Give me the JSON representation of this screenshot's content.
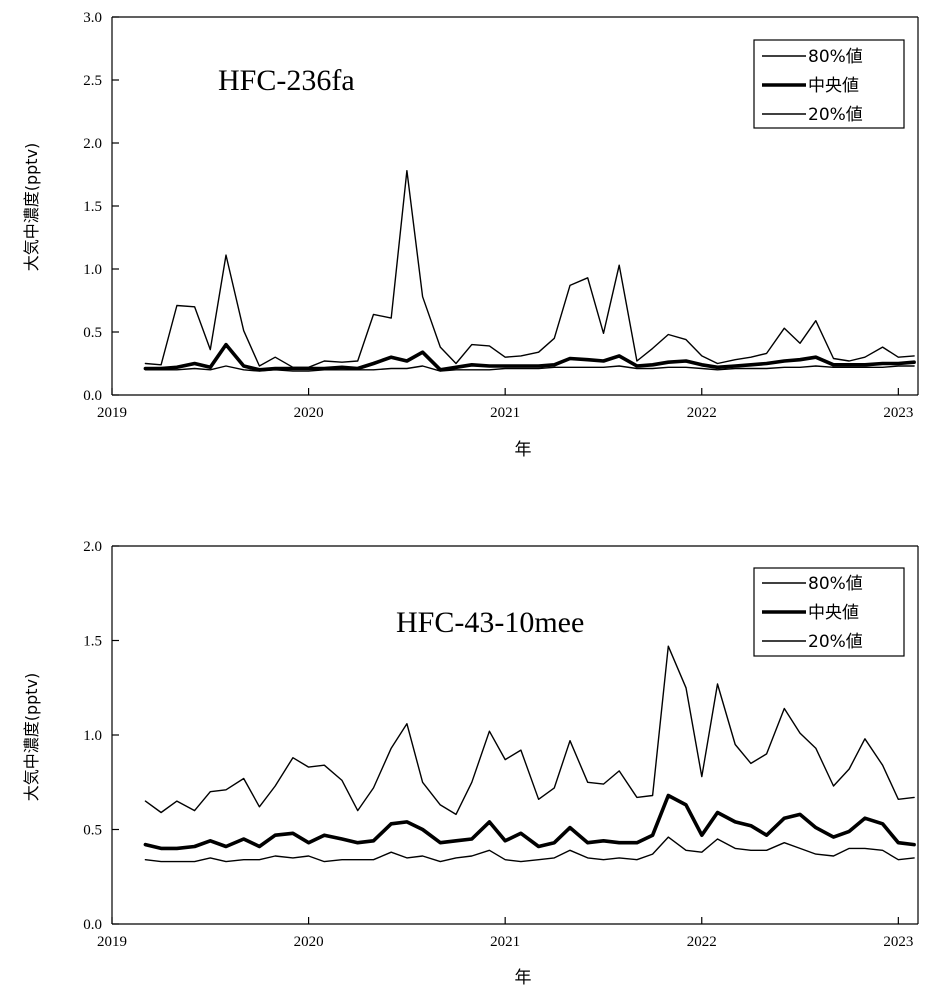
{
  "chart_data": [
    {
      "type": "line",
      "title": "HFC-236fa",
      "xlabel": "年",
      "ylabel": "大気中濃度(pptv)",
      "xlim": [
        2019,
        2023.1
      ],
      "ylim": [
        0,
        3.0
      ],
      "xticks": [
        "2019",
        "2020",
        "2021",
        "2022",
        "2023"
      ],
      "yticks": [
        "0.0",
        "0.5",
        "1.0",
        "1.5",
        "2.0",
        "2.5",
        "3.0"
      ],
      "grid": false,
      "legend_position": "top-right",
      "x": [
        2019.17,
        2019.25,
        2019.33,
        2019.42,
        2019.5,
        2019.58,
        2019.67,
        2019.75,
        2019.83,
        2019.92,
        2020.0,
        2020.08,
        2020.17,
        2020.25,
        2020.33,
        2020.42,
        2020.5,
        2020.58,
        2020.67,
        2020.75,
        2020.83,
        2020.92,
        2021.0,
        2021.08,
        2021.17,
        2021.25,
        2021.33,
        2021.42,
        2021.5,
        2021.58,
        2021.67,
        2021.75,
        2021.83,
        2021.92,
        2022.0,
        2022.08,
        2022.17,
        2022.25,
        2022.33,
        2022.42,
        2022.5,
        2022.58,
        2022.67,
        2022.75,
        2022.83,
        2022.92,
        2023.0,
        2023.08
      ],
      "series": [
        {
          "name": "80%値",
          "stroke_width": 1.4,
          "values": [
            0.25,
            0.24,
            0.71,
            0.7,
            0.36,
            1.11,
            0.51,
            0.23,
            0.3,
            0.22,
            0.22,
            0.27,
            0.26,
            0.27,
            0.64,
            0.61,
            1.78,
            0.78,
            0.38,
            0.25,
            0.4,
            0.39,
            0.3,
            0.31,
            0.34,
            0.45,
            0.87,
            0.93,
            0.49,
            1.03,
            0.27,
            0.37,
            0.48,
            0.44,
            0.31,
            0.25,
            0.28,
            0.3,
            0.33,
            0.53,
            0.41,
            0.59,
            0.29,
            0.27,
            0.3,
            0.38,
            0.3,
            0.31
          ]
        },
        {
          "name": "中央値",
          "stroke_width": 3.6,
          "values": [
            0.21,
            0.21,
            0.22,
            0.25,
            0.22,
            0.4,
            0.23,
            0.2,
            0.21,
            0.21,
            0.21,
            0.21,
            0.22,
            0.21,
            0.25,
            0.3,
            0.27,
            0.34,
            0.2,
            0.22,
            0.24,
            0.23,
            0.23,
            0.23,
            0.23,
            0.24,
            0.29,
            0.28,
            0.27,
            0.31,
            0.23,
            0.24,
            0.26,
            0.27,
            0.24,
            0.22,
            0.23,
            0.24,
            0.25,
            0.27,
            0.28,
            0.3,
            0.24,
            0.24,
            0.24,
            0.25,
            0.25,
            0.26
          ]
        },
        {
          "name": "20%値",
          "stroke_width": 1.4,
          "values": [
            0.2,
            0.2,
            0.2,
            0.21,
            0.2,
            0.23,
            0.2,
            0.19,
            0.2,
            0.19,
            0.19,
            0.2,
            0.2,
            0.2,
            0.2,
            0.21,
            0.21,
            0.23,
            0.19,
            0.2,
            0.2,
            0.2,
            0.21,
            0.21,
            0.21,
            0.22,
            0.22,
            0.22,
            0.22,
            0.23,
            0.21,
            0.21,
            0.22,
            0.22,
            0.21,
            0.2,
            0.21,
            0.21,
            0.21,
            0.22,
            0.22,
            0.23,
            0.22,
            0.22,
            0.22,
            0.22,
            0.23,
            0.23
          ]
        }
      ]
    },
    {
      "type": "line",
      "title": "HFC-43-10mee",
      "xlabel": "年",
      "ylabel": "大気中濃度(pptv)",
      "xlim": [
        2019,
        2023.1
      ],
      "ylim": [
        0,
        2.0
      ],
      "xticks": [
        "2019",
        "2020",
        "2021",
        "2022",
        "2023"
      ],
      "yticks": [
        "0.0",
        "0.5",
        "1.0",
        "1.5",
        "2.0"
      ],
      "grid": false,
      "legend_position": "top-right",
      "x": [
        2019.17,
        2019.25,
        2019.33,
        2019.42,
        2019.5,
        2019.58,
        2019.67,
        2019.75,
        2019.83,
        2019.92,
        2020.0,
        2020.08,
        2020.17,
        2020.25,
        2020.33,
        2020.42,
        2020.5,
        2020.58,
        2020.67,
        2020.75,
        2020.83,
        2020.92,
        2021.0,
        2021.08,
        2021.17,
        2021.25,
        2021.33,
        2021.42,
        2021.5,
        2021.58,
        2021.67,
        2021.75,
        2021.83,
        2021.92,
        2022.0,
        2022.08,
        2022.17,
        2022.25,
        2022.33,
        2022.42,
        2022.5,
        2022.58,
        2022.67,
        2022.75,
        2022.83,
        2022.92,
        2023.0,
        2023.08
      ],
      "series": [
        {
          "name": "80%値",
          "stroke_width": 1.4,
          "values": [
            0.65,
            0.59,
            0.65,
            0.6,
            0.7,
            0.71,
            0.77,
            0.62,
            0.73,
            0.88,
            0.83,
            0.84,
            0.76,
            0.6,
            0.72,
            0.93,
            1.06,
            0.75,
            0.63,
            0.58,
            0.75,
            1.02,
            0.87,
            0.92,
            0.66,
            0.72,
            0.97,
            0.75,
            0.74,
            0.81,
            0.67,
            0.68,
            1.47,
            1.25,
            0.78,
            1.27,
            0.95,
            0.85,
            0.9,
            1.14,
            1.01,
            0.93,
            0.73,
            0.82,
            0.98,
            0.84,
            0.66,
            0.67
          ]
        },
        {
          "name": "中央値",
          "stroke_width": 3.6,
          "values": [
            0.42,
            0.4,
            0.4,
            0.41,
            0.44,
            0.41,
            0.45,
            0.41,
            0.47,
            0.48,
            0.43,
            0.47,
            0.45,
            0.43,
            0.44,
            0.53,
            0.54,
            0.5,
            0.43,
            0.44,
            0.45,
            0.54,
            0.44,
            0.48,
            0.41,
            0.43,
            0.51,
            0.43,
            0.44,
            0.43,
            0.43,
            0.47,
            0.68,
            0.63,
            0.47,
            0.59,
            0.54,
            0.52,
            0.47,
            0.56,
            0.58,
            0.51,
            0.46,
            0.49,
            0.56,
            0.53,
            0.43,
            0.42
          ]
        },
        {
          "name": "20%値",
          "stroke_width": 1.4,
          "values": [
            0.34,
            0.33,
            0.33,
            0.33,
            0.35,
            0.33,
            0.34,
            0.34,
            0.36,
            0.35,
            0.36,
            0.33,
            0.34,
            0.34,
            0.34,
            0.38,
            0.35,
            0.36,
            0.33,
            0.35,
            0.36,
            0.39,
            0.34,
            0.33,
            0.34,
            0.35,
            0.39,
            0.35,
            0.34,
            0.35,
            0.34,
            0.37,
            0.46,
            0.39,
            0.38,
            0.45,
            0.4,
            0.39,
            0.39,
            0.43,
            0.4,
            0.37,
            0.36,
            0.4,
            0.4,
            0.39,
            0.34,
            0.35
          ]
        }
      ]
    }
  ]
}
